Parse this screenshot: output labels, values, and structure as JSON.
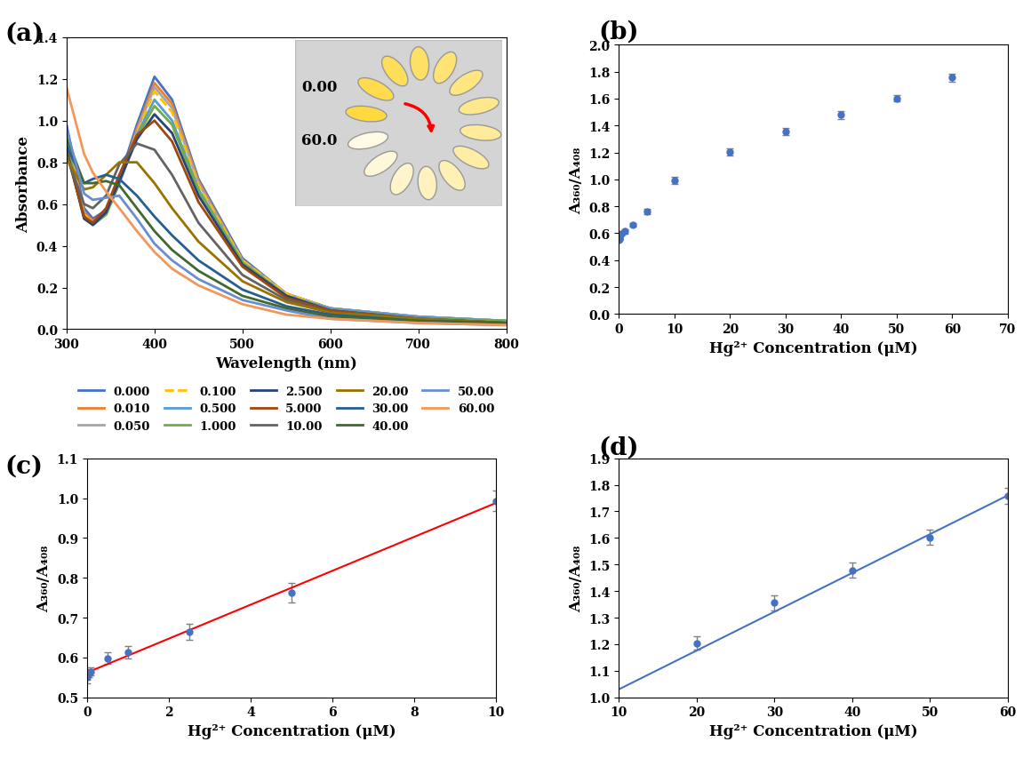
{
  "chart_data": [
    {
      "type": "line",
      "panel": "(a)",
      "x_label": "Wavelength (nm)",
      "y_label": "Absorbance",
      "annotations": [
        "0.00",
        "60.0"
      ],
      "x": [
        300,
        320,
        330,
        345,
        360,
        380,
        400,
        420,
        450,
        500,
        550,
        600,
        700,
        800
      ],
      "series": [
        {
          "name": "0.000",
          "color": "#4472C4",
          "line_style": "solid",
          "values": [
            0.98,
            0.58,
            0.53,
            0.57,
            0.72,
            0.98,
            1.21,
            1.1,
            0.72,
            0.34,
            0.17,
            0.1,
            0.06,
            0.04
          ]
        },
        {
          "name": "0.010",
          "color": "#ED7D31",
          "line_style": "solid",
          "values": [
            0.95,
            0.56,
            0.52,
            0.56,
            0.71,
            0.96,
            1.18,
            1.08,
            0.71,
            0.33,
            0.17,
            0.1,
            0.06,
            0.04
          ]
        },
        {
          "name": "0.050",
          "color": "#A5A5A5",
          "line_style": "solid",
          "values": [
            0.93,
            0.55,
            0.51,
            0.55,
            0.7,
            0.95,
            1.16,
            1.06,
            0.7,
            0.33,
            0.17,
            0.1,
            0.06,
            0.04
          ]
        },
        {
          "name": "0.100",
          "color": "#FFC000",
          "line_style": "dashed",
          "values": [
            0.92,
            0.55,
            0.51,
            0.55,
            0.7,
            0.94,
            1.14,
            1.04,
            0.69,
            0.33,
            0.17,
            0.1,
            0.06,
            0.04
          ]
        },
        {
          "name": "0.500",
          "color": "#5B9BD5",
          "line_style": "solid",
          "values": [
            0.9,
            0.54,
            0.5,
            0.55,
            0.7,
            0.93,
            1.1,
            1.0,
            0.67,
            0.32,
            0.16,
            0.1,
            0.06,
            0.04
          ]
        },
        {
          "name": "1.000",
          "color": "#70AD47",
          "line_style": "solid",
          "values": [
            0.88,
            0.53,
            0.5,
            0.55,
            0.7,
            0.92,
            1.07,
            0.98,
            0.66,
            0.32,
            0.16,
            0.09,
            0.05,
            0.04
          ]
        },
        {
          "name": "2.500",
          "color": "#264478",
          "line_style": "solid",
          "values": [
            0.86,
            0.53,
            0.5,
            0.56,
            0.71,
            0.91,
            1.03,
            0.94,
            0.64,
            0.31,
            0.16,
            0.09,
            0.05,
            0.03
          ]
        },
        {
          "name": "5.000",
          "color": "#9E480E",
          "line_style": "solid",
          "values": [
            0.85,
            0.54,
            0.51,
            0.58,
            0.74,
            0.93,
            1.0,
            0.9,
            0.61,
            0.3,
            0.15,
            0.09,
            0.05,
            0.03
          ]
        },
        {
          "name": "10.00",
          "color": "#636363",
          "line_style": "solid",
          "values": [
            0.83,
            0.6,
            0.58,
            0.64,
            0.79,
            0.89,
            0.86,
            0.74,
            0.51,
            0.26,
            0.14,
            0.08,
            0.05,
            0.03
          ]
        },
        {
          "name": "20.00",
          "color": "#997300",
          "line_style": "solid",
          "values": [
            0.82,
            0.67,
            0.68,
            0.74,
            0.8,
            0.8,
            0.7,
            0.58,
            0.42,
            0.23,
            0.13,
            0.08,
            0.05,
            0.03
          ]
        },
        {
          "name": "30.00",
          "color": "#255E91",
          "line_style": "solid",
          "values": [
            0.88,
            0.7,
            0.72,
            0.74,
            0.72,
            0.64,
            0.54,
            0.45,
            0.33,
            0.19,
            0.11,
            0.07,
            0.04,
            0.03
          ]
        },
        {
          "name": "40.00",
          "color": "#43682B",
          "line_style": "solid",
          "values": [
            0.92,
            0.7,
            0.7,
            0.71,
            0.69,
            0.58,
            0.47,
            0.38,
            0.28,
            0.16,
            0.1,
            0.06,
            0.04,
            0.03
          ]
        },
        {
          "name": "50.00",
          "color": "#698ED0",
          "line_style": "solid",
          "values": [
            0.96,
            0.65,
            0.62,
            0.63,
            0.64,
            0.53,
            0.41,
            0.33,
            0.24,
            0.14,
            0.09,
            0.05,
            0.03,
            0.02
          ]
        },
        {
          "name": "60.00",
          "color": "#F1975A",
          "line_style": "solid",
          "values": [
            1.16,
            0.84,
            0.75,
            0.66,
            0.58,
            0.47,
            0.37,
            0.29,
            0.21,
            0.12,
            0.07,
            0.05,
            0.03,
            0.02
          ]
        }
      ],
      "xlim": [
        300,
        800
      ],
      "xticks": [
        300,
        400,
        500,
        600,
        700,
        800
      ],
      "ylim": [
        0,
        1.4
      ],
      "yticks": [
        {
          "value": 0,
          "label": "0.0"
        },
        0.2,
        0.4,
        0.6,
        0.8,
        {
          "value": 1,
          "label": "1.0"
        },
        1.2,
        1.4
      ],
      "legend": "upper center"
    },
    {
      "type": "scatter",
      "panel": "(b)",
      "x_label": "Hg²⁺ Concentration (μM)",
      "y_label": "A₃₆₀/A₄₀₈",
      "x": [
        0,
        0.01,
        0.05,
        0.1,
        0.5,
        1,
        2.5,
        5,
        10,
        20,
        30,
        40,
        50,
        60
      ],
      "values": [
        0.55,
        0.555,
        0.56,
        0.565,
        0.598,
        0.613,
        0.664,
        0.763,
        0.993,
        1.204,
        1.356,
        1.478,
        1.602,
        1.757
      ],
      "error": [
        0.015,
        0.01,
        0.01,
        0.01,
        0.015,
        0.015,
        0.012,
        0.02,
        0.025,
        0.025,
        0.025,
        0.028,
        0.025,
        0.03
      ],
      "color": "#4472C4",
      "marker": "o",
      "xlim": [
        0,
        70
      ],
      "xticks": [
        0,
        10,
        20,
        30,
        40,
        50,
        60,
        70
      ],
      "ylim": [
        0,
        2
      ],
      "yticks": [
        {
          "value": 0,
          "label": "0.0"
        },
        0.2,
        0.4,
        0.6,
        0.8,
        {
          "value": 1,
          "label": "1.0"
        },
        1.2,
        1.4,
        1.6,
        1.8,
        {
          "value": 2,
          "label": "2.0"
        }
      ]
    },
    {
      "type": "scatter",
      "panel": "(c)",
      "x_label": "Hg²⁺ Concentration (μM)",
      "y_label": "A₃₆₀/A₄₀₈",
      "x": [
        0,
        0.01,
        0.05,
        0.1,
        0.5,
        1,
        2.5,
        5,
        10
      ],
      "values": [
        0.55,
        0.555,
        0.56,
        0.565,
        0.598,
        0.613,
        0.664,
        0.763,
        0.993
      ],
      "error": [
        0.015,
        0.01,
        0.01,
        0.01,
        0.015,
        0.015,
        0.02,
        0.025,
        0.025
      ],
      "color": "#4472C4",
      "marker": "o",
      "fit": {
        "x": [
          0,
          10
        ],
        "y": [
          0.562,
          0.988
        ],
        "color": "#FF0000"
      },
      "xlim": [
        0,
        10
      ],
      "xticks": [
        0,
        2,
        4,
        6,
        8,
        10
      ],
      "ylim": [
        0.5,
        1.1
      ],
      "yticks": [
        0.5,
        0.6,
        0.7,
        0.8,
        0.9,
        {
          "value": 1,
          "label": "1.0"
        },
        1.1
      ]
    },
    {
      "type": "scatter",
      "panel": "(d)",
      "x_label": "Hg²⁺ Concentration (μM)",
      "y_label": "A₃₆₀/A₄₀₈",
      "x": [
        20,
        30,
        40,
        50,
        60
      ],
      "values": [
        1.204,
        1.356,
        1.478,
        1.602,
        1.757
      ],
      "error": [
        0.025,
        0.028,
        0.028,
        0.028,
        0.03
      ],
      "color": "#4472C4",
      "marker": "o",
      "fit": {
        "x": [
          10,
          60
        ],
        "y": [
          1.03,
          1.76
        ],
        "color": "#4472C4"
      },
      "xlim": [
        10,
        60
      ],
      "xticks": [
        10,
        20,
        30,
        40,
        50,
        60
      ],
      "ylim": [
        1,
        1.9
      ],
      "yticks": [
        {
          "value": 1,
          "label": "1.0"
        },
        1.1,
        1.2,
        1.3,
        1.4,
        1.5,
        1.6,
        1.7,
        1.8,
        1.9
      ]
    }
  ]
}
